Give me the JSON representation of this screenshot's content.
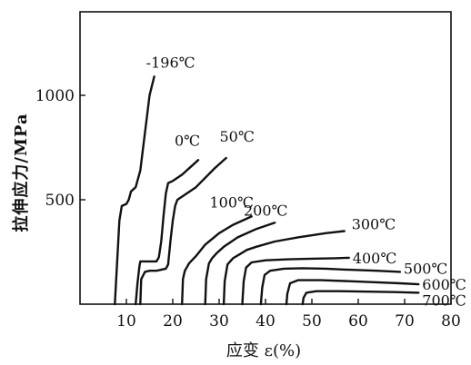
{
  "chart_data": {
    "type": "line",
    "xlabel": "应变 ε(%)",
    "ylabel": "拉伸应力/MPa",
    "xlim": [
      0,
      80
    ],
    "ylim": [
      0,
      1400
    ],
    "xticks": [
      10,
      20,
      30,
      40,
      50,
      60,
      70,
      80
    ],
    "yticks": [
      500,
      1000
    ],
    "grid": false,
    "legend": "none",
    "series": [
      {
        "name": "-196℃",
        "x": [
          7.5,
          8.0,
          8.5,
          9.0,
          10.0,
          10.5,
          11.0,
          12.0,
          13.0,
          14.0,
          15.0,
          16.0
        ],
        "y": [
          0,
          200,
          400,
          470,
          480,
          500,
          540,
          560,
          640,
          820,
          1000,
          1090
        ]
      },
      {
        "name": "0℃",
        "x": [
          12.0,
          12.4,
          12.8,
          13.0,
          16.5,
          17.0,
          17.5,
          18.0,
          18.5,
          19.0,
          20.0,
          22.0,
          24.0,
          25.5
        ],
        "y": [
          0,
          100,
          180,
          205,
          205,
          225,
          300,
          420,
          530,
          580,
          590,
          620,
          660,
          690
        ]
      },
      {
        "name": "50℃",
        "x": [
          13.0,
          13.2,
          14.0,
          15.0,
          16.5,
          18.5,
          19.0,
          19.5,
          20.0,
          20.5,
          21.0,
          25.0,
          29.0,
          31.5
        ],
        "y": [
          0,
          120,
          155,
          160,
          160,
          170,
          190,
          300,
          400,
          470,
          500,
          560,
          650,
          700
        ]
      },
      {
        "name": "100℃",
        "x": [
          22.0,
          22.2,
          22.6,
          23.5,
          25.0,
          27.0,
          30.0,
          33.0,
          37.0
        ],
        "y": [
          0,
          120,
          160,
          195,
          230,
          285,
          340,
          380,
          420
        ]
      },
      {
        "name": "200℃",
        "x": [
          27.0,
          27.2,
          27.8,
          28.5,
          29.5,
          31.0,
          34.0,
          38.0,
          42.0
        ],
        "y": [
          0,
          120,
          195,
          220,
          245,
          275,
          320,
          360,
          390
        ]
      },
      {
        "name": "300℃",
        "x": [
          31.0,
          31.2,
          31.8,
          33.0,
          34.5,
          36.0,
          38.0,
          42.0,
          47.0,
          53.0,
          57.0
        ],
        "y": [
          0,
          110,
          190,
          220,
          240,
          260,
          275,
          300,
          320,
          340,
          350
        ]
      },
      {
        "name": "400℃",
        "x": [
          35.0,
          35.3,
          35.8,
          37.0,
          40.0,
          45.0,
          50.0,
          55.0,
          58.0
        ],
        "y": [
          0,
          110,
          175,
          200,
          210,
          215,
          218,
          220,
          222
        ]
      },
      {
        "name": "500℃",
        "x": [
          39.0,
          39.3,
          39.8,
          41.0,
          44.0,
          48.0,
          53.0,
          58.0,
          64.0,
          69.0
        ],
        "y": [
          0,
          80,
          140,
          160,
          170,
          172,
          170,
          165,
          160,
          155
        ]
      },
      {
        "name": "600℃",
        "x": [
          44.5,
          44.7,
          45.3,
          47.0,
          52.0,
          58.0,
          64.0,
          69.0,
          73.0
        ],
        "y": [
          0,
          50,
          100,
          115,
          115,
          110,
          105,
          100,
          95
        ]
      },
      {
        "name": "700℃",
        "x": [
          48.0,
          48.2,
          48.8,
          51.0,
          56.0,
          62.0,
          68.0,
          73.0
        ],
        "y": [
          0,
          30,
          55,
          62,
          62,
          60,
          58,
          55
        ]
      }
    ]
  }
}
